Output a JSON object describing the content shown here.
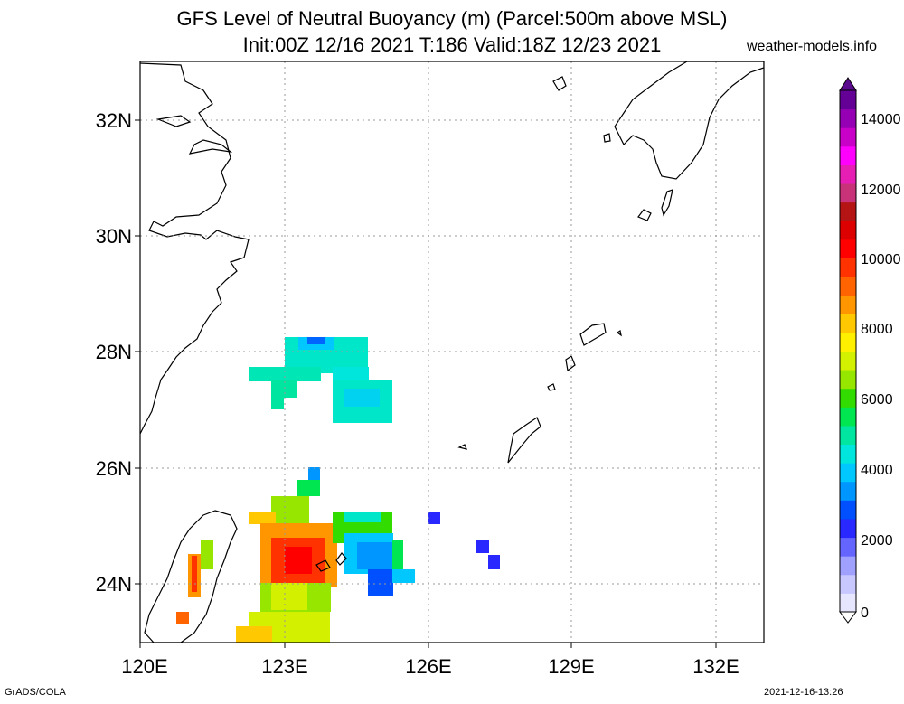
{
  "title_line1": "GFS Level of Neutral Buoyancy (m) (Parcel:500m above MSL)",
  "title_line2": "Init:00Z 12/16 2021 T:186 Valid:18Z 12/23 2021",
  "site": "weather-models.info",
  "footer_left": "GrADS/COLA",
  "footer_right": "2021-12-16-13:26",
  "axes": {
    "lat_labels": [
      "32N",
      "30N",
      "28N",
      "26N",
      "24N"
    ],
    "lon_labels": [
      "120E",
      "123E",
      "126E",
      "129E",
      "132E"
    ]
  },
  "colorbar": {
    "labels": [
      "14000",
      "12000",
      "10000",
      "8000",
      "6000",
      "4000",
      "2000",
      "0"
    ],
    "colors": [
      "#e6e6ff",
      "#c8c8ff",
      "#a0a0ff",
      "#6464ff",
      "#2828ff",
      "#0050ff",
      "#0096ff",
      "#00c8ff",
      "#00e6dc",
      "#00e6a0",
      "#00e650",
      "#32dc00",
      "#96e600",
      "#d2f000",
      "#fff000",
      "#ffc800",
      "#ff9600",
      "#ff6400",
      "#ff3200",
      "#ff0000",
      "#dc0000",
      "#b41414",
      "#c83278",
      "#e61eb4",
      "#ff00ff",
      "#c800c8",
      "#9600b4",
      "#640096"
    ]
  },
  "chart_data": {
    "type": "map",
    "variable": "Level of Neutral Buoyancy (m)",
    "lon_range": [
      120,
      133
    ],
    "lat_range": [
      23,
      33
    ],
    "value_range": [
      0,
      15000
    ]
  }
}
